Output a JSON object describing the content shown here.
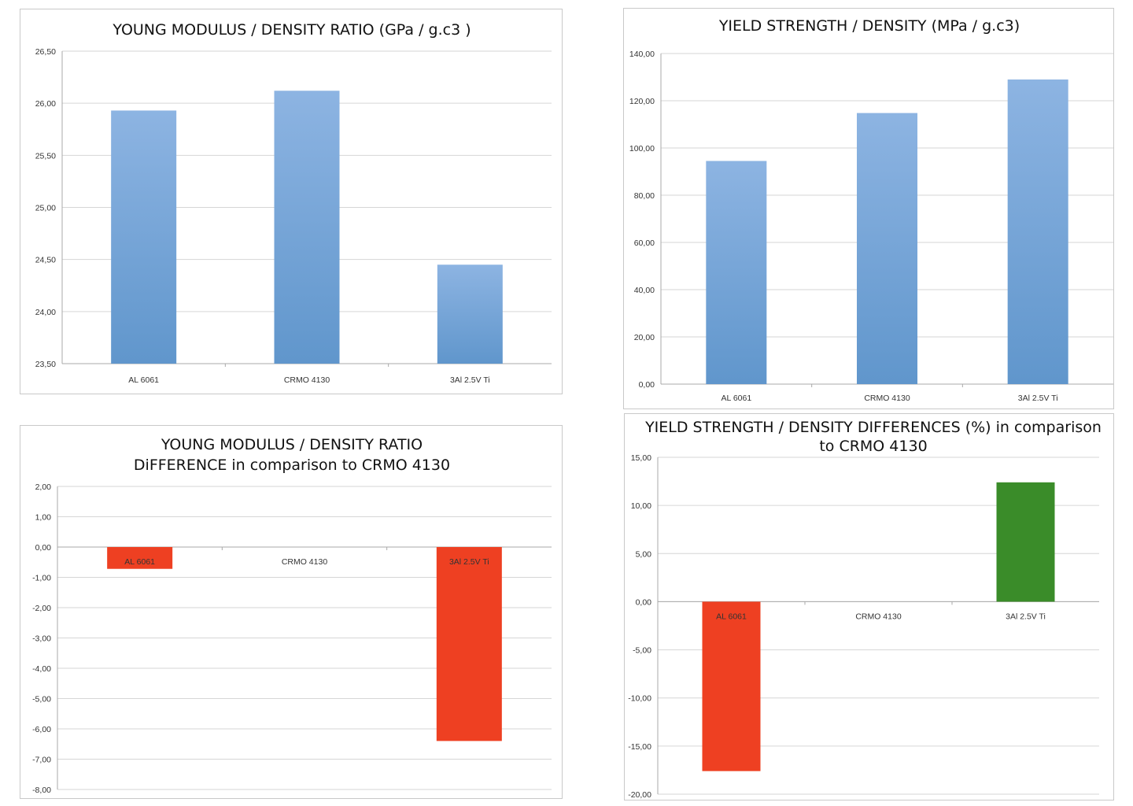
{
  "chart_data": [
    {
      "id": "c1",
      "type": "bar",
      "title": [
        "YOUNG MODULUS / DENSITY RATIO (GPa / g.c3 )"
      ],
      "categories": [
        "AL 6061",
        "CRMO 4130",
        "3Al 2.5V Ti"
      ],
      "values": [
        25.93,
        26.12,
        24.45
      ],
      "ylim": [
        23.5,
        26.5
      ],
      "yticks": [
        23.5,
        24.0,
        24.5,
        25.0,
        25.5,
        26.0,
        26.5
      ],
      "ytick_labels": [
        "23,50",
        "24,00",
        "24,50",
        "25,00",
        "25,50",
        "26,00",
        "26,50"
      ],
      "bar_color": "gradient-blue",
      "category_label_position": "bottom",
      "grid": true,
      "legend": "none"
    },
    {
      "id": "c2",
      "type": "bar",
      "title": [
        "YIELD STRENGTH / DENSITY (MPa / g.c3)"
      ],
      "categories": [
        "AL 6061",
        "CRMO 4130",
        "3Al 2.5V Ti"
      ],
      "values": [
        94.5,
        114.8,
        129.0
      ],
      "ylim": [
        0,
        140
      ],
      "yticks": [
        0,
        20,
        40,
        60,
        80,
        100,
        120,
        140
      ],
      "ytick_labels": [
        "0,00",
        "20,00",
        "40,00",
        "60,00",
        "80,00",
        "100,00",
        "120,00",
        "140,00"
      ],
      "bar_color": "gradient-blue",
      "category_label_position": "bottom",
      "grid": true,
      "legend": "none"
    },
    {
      "id": "c3",
      "type": "bar",
      "title": [
        "YOUNG MODULUS / DENSITY RATIO",
        "DiFFERENCE in comparison to CRMO 4130"
      ],
      "categories": [
        "AL 6061",
        "CRMO 4130",
        "3Al 2.5V Ti"
      ],
      "values": [
        -0.72,
        0,
        -6.4
      ],
      "ylim": [
        -8,
        2
      ],
      "yticks": [
        -8,
        -7,
        -6,
        -5,
        -4,
        -3,
        -2,
        -1,
        0,
        1,
        2
      ],
      "ytick_labels": [
        "-8,00",
        "-7,00",
        "-6,00",
        "-5,00",
        "-4,00",
        "-3,00",
        "-2,00",
        "-1,00",
        "0,00",
        "1,00",
        "2,00"
      ],
      "bar_color": "#ee4022",
      "category_label_position": "below-zero",
      "grid": true,
      "legend": "none"
    },
    {
      "id": "c4",
      "type": "bar",
      "title": [
        "YIELD STRENGTH  / DENSITY DIFFERENCES (%) in comparison",
        "to CRMO 4130"
      ],
      "categories": [
        "AL 6061",
        "CRMO 4130",
        "3Al 2.5V Ti"
      ],
      "values": [
        -17.6,
        0,
        12.4
      ],
      "ylim": [
        -20,
        15
      ],
      "yticks": [
        -20,
        -15,
        -10,
        -5,
        0,
        5,
        10,
        15
      ],
      "ytick_labels": [
        "-20,00",
        "-15,00",
        "-10,00",
        "-5,00",
        "0,00",
        "5,00",
        "10,00",
        "15,00"
      ],
      "bar_colors": [
        "#ee4022",
        "#ee4022",
        "#3a8c29"
      ],
      "category_label_position": "below-zero",
      "grid": true,
      "legend": "none"
    }
  ]
}
